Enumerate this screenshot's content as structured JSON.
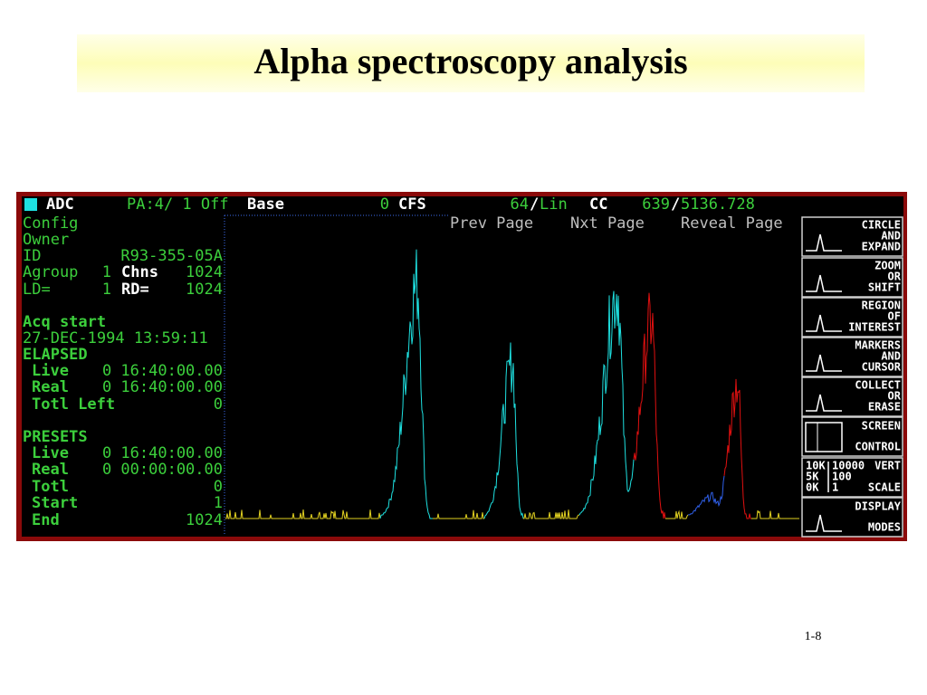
{
  "header": {
    "title": "Alpha spectroscopy analysis",
    "page_number": "1-8"
  },
  "status_bar": {
    "adc": "ADC",
    "pa": "PA:4/ 1 Off",
    "base_label": "Base",
    "base_value": "0",
    "cfs": "CFS",
    "gain": "64",
    "gain_sep": "/",
    "gain_mode": "Lin",
    "cc": "CC",
    "cc_value": "639",
    "cc_sep": "/",
    "cc_total": "5136.728"
  },
  "menu": [
    "Prev Page",
    "Nxt Page",
    "Reveal Page"
  ],
  "info_panel": {
    "config": "Config",
    "owner": "Owner",
    "id_label": "ID",
    "id_value": "R93-355-05A",
    "agroup_label": "Agroup",
    "agroup_value": "1",
    "chns_label": "Chns",
    "chns_value": "1024",
    "ld_label": "LD=",
    "ld_value": "1",
    "rd_label": "RD=",
    "rd_value": "1024",
    "acq_start": "Acq start",
    "acq_date": "27-DEC-1994 13:59:11",
    "elapsed": "ELAPSED",
    "elapsed_live_label": "Live",
    "elapsed_live_value": "0 16:40:00.00",
    "elapsed_real_label": "Real",
    "elapsed_real_value": "0 16:40:00.00",
    "totl_left_label": "Totl Left",
    "totl_left_value": "0",
    "presets": "PRESETS",
    "preset_live_label": "Live",
    "preset_live_value": "0 16:40:00.00",
    "preset_real_label": "Real",
    "preset_real_value": "0 00:00:00.00",
    "preset_totl_label": "Totl",
    "preset_totl_value": "0",
    "preset_start_label": "Start",
    "preset_start_value": "1",
    "preset_end_label": "End",
    "preset_end_value": "1024"
  },
  "softkeys": [
    {
      "lines": [
        "CIRCLE",
        "AND",
        "EXPAND"
      ]
    },
    {
      "lines": [
        "ZOOM",
        "OR",
        "SHIFT"
      ]
    },
    {
      "lines": [
        "REGION",
        "OF",
        "INTEREST"
      ]
    },
    {
      "lines": [
        "MARKERS",
        "AND",
        "CURSOR"
      ]
    },
    {
      "lines": [
        "COLLECT",
        "OR",
        "ERASE"
      ]
    },
    {
      "lines": [
        "SCREEN",
        "CONTROL"
      ]
    },
    {
      "scale_left": [
        "10K",
        "5K",
        "0K"
      ],
      "scale_mid": [
        "10000",
        "100",
        "1"
      ],
      "lines": [
        "VERT",
        "SCALE"
      ]
    },
    {
      "lines": [
        "DISPLAY",
        "MODES"
      ]
    }
  ]
}
